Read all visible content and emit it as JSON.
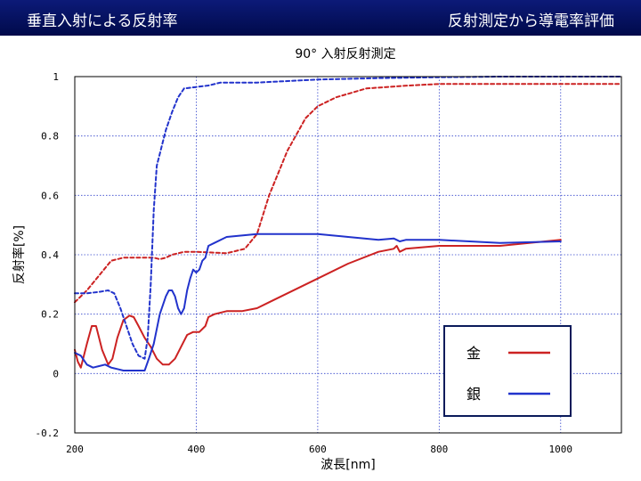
{
  "header": {
    "left_title": "垂直入射による反射率",
    "right_title": "反射測定から導電率評価"
  },
  "chart_data": {
    "type": "line",
    "title": "90° 入射反射測定",
    "xlabel": "波長[nm]",
    "ylabel": "反射率[%]",
    "xlim": [
      200,
      1100
    ],
    "ylim": [
      -0.2,
      1
    ],
    "xticks": [
      200,
      400,
      600,
      800,
      1000
    ],
    "xtick_labels": [
      "200",
      "400",
      "600",
      "800",
      "1000"
    ],
    "yticks": [
      -0.2,
      0,
      0.2,
      0.4,
      0.6,
      0.8,
      1
    ],
    "ytick_labels": [
      "-0.2",
      "0",
      "0.2",
      "0.4",
      "0.6",
      "0.8",
      "1"
    ],
    "grid": true,
    "legend_position": "bottom-right",
    "colors": {
      "gold": "#cc2222",
      "silver": "#2233cc"
    },
    "series": [
      {
        "name": "金",
        "color_key": "gold",
        "style": "solid",
        "x": [
          200,
          205,
          210,
          220,
          228,
          235,
          245,
          255,
          262,
          270,
          280,
          290,
          297,
          305,
          315,
          325,
          335,
          345,
          355,
          365,
          375,
          385,
          395,
          405,
          415,
          420,
          430,
          450,
          475,
          500,
          520,
          550,
          600,
          650,
          700,
          725,
          730,
          735,
          745,
          800,
          900,
          1000
        ],
        "y": [
          0.08,
          0.04,
          0.02,
          0.1,
          0.16,
          0.16,
          0.08,
          0.03,
          0.05,
          0.12,
          0.18,
          0.195,
          0.19,
          0.16,
          0.12,
          0.09,
          0.05,
          0.03,
          0.03,
          0.05,
          0.09,
          0.13,
          0.14,
          0.14,
          0.16,
          0.19,
          0.2,
          0.21,
          0.21,
          0.22,
          0.24,
          0.27,
          0.32,
          0.37,
          0.41,
          0.42,
          0.43,
          0.41,
          0.42,
          0.43,
          0.43,
          0.45
        ]
      },
      {
        "name": "金",
        "color_key": "gold",
        "style": "dashed",
        "x": [
          200,
          220,
          240,
          260,
          280,
          300,
          310,
          320,
          330,
          340,
          350,
          360,
          380,
          400,
          450,
          480,
          500,
          520,
          550,
          580,
          600,
          630,
          680,
          750,
          800,
          900,
          1000,
          1100
        ],
        "y": [
          0.24,
          0.28,
          0.33,
          0.38,
          0.39,
          0.39,
          0.39,
          0.39,
          0.39,
          0.385,
          0.39,
          0.4,
          0.41,
          0.41,
          0.405,
          0.42,
          0.47,
          0.6,
          0.75,
          0.86,
          0.9,
          0.93,
          0.96,
          0.97,
          0.975,
          0.975,
          0.975,
          0.975
        ]
      },
      {
        "name": "銀",
        "color_key": "silver",
        "style": "solid",
        "x": [
          200,
          210,
          220,
          230,
          240,
          250,
          260,
          270,
          280,
          300,
          315,
          322,
          330,
          340,
          350,
          355,
          360,
          365,
          370,
          375,
          380,
          385,
          390,
          395,
          400,
          405,
          410,
          415,
          420,
          430,
          450,
          500,
          550,
          600,
          650,
          700,
          725,
          730,
          735,
          745,
          800,
          900,
          1000
        ],
        "y": [
          0.07,
          0.06,
          0.03,
          0.02,
          0.025,
          0.03,
          0.02,
          0.015,
          0.01,
          0.01,
          0.01,
          0.05,
          0.1,
          0.2,
          0.26,
          0.28,
          0.28,
          0.26,
          0.22,
          0.2,
          0.22,
          0.28,
          0.32,
          0.35,
          0.34,
          0.35,
          0.38,
          0.39,
          0.43,
          0.44,
          0.46,
          0.47,
          0.47,
          0.47,
          0.46,
          0.45,
          0.455,
          0.45,
          0.445,
          0.45,
          0.45,
          0.44,
          0.445
        ]
      },
      {
        "name": "銀",
        "color_key": "silver",
        "style": "dashed",
        "x": [
          200,
          220,
          240,
          255,
          265,
          275,
          285,
          295,
          305,
          315,
          320,
          325,
          330,
          335,
          340,
          345,
          350,
          360,
          370,
          380,
          400,
          420,
          440,
          500,
          600,
          700,
          800,
          900,
          1000,
          1100
        ],
        "y": [
          0.27,
          0.27,
          0.275,
          0.28,
          0.27,
          0.22,
          0.16,
          0.1,
          0.06,
          0.05,
          0.12,
          0.3,
          0.55,
          0.7,
          0.74,
          0.78,
          0.82,
          0.88,
          0.93,
          0.96,
          0.965,
          0.97,
          0.98,
          0.98,
          0.99,
          0.995,
          0.998,
          1.0,
          1.0,
          1.0
        ]
      }
    ],
    "legend": [
      {
        "label": "金",
        "color_key": "gold"
      },
      {
        "label": "銀",
        "color_key": "silver"
      }
    ]
  }
}
